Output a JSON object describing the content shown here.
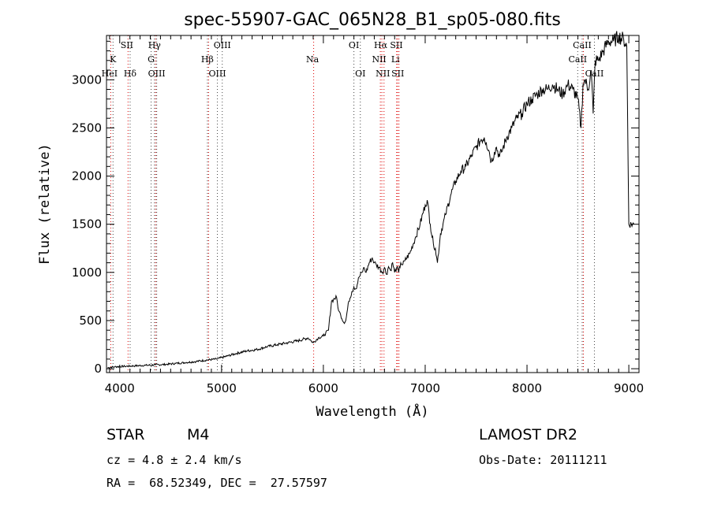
{
  "chart_data": {
    "type": "line",
    "title": "spec-55907-GAC_065N28_B1_sp05-080.fits",
    "xlabel": "Wavelength (Å)",
    "ylabel": "Flux (relative)",
    "xlim": [
      3870,
      9100
    ],
    "ylim": [
      -40,
      3460
    ],
    "xticks": [
      4000,
      5000,
      6000,
      7000,
      8000,
      9000
    ],
    "yticks": [
      0,
      500,
      1000,
      1500,
      2000,
      2500,
      3000
    ],
    "grid": false,
    "series": [
      {
        "x": [
          3880,
          3950,
          4050,
          4150,
          4250,
          4350,
          4450,
          4550,
          4650,
          4750,
          4850,
          4950,
          5050,
          5150,
          5250,
          5350,
          5450,
          5550,
          5650,
          5750,
          5850,
          5880,
          5900,
          5950,
          6000,
          6050,
          6080,
          6100,
          6130,
          6150,
          6170,
          6200,
          6220,
          6250,
          6280,
          6300,
          6320,
          6350,
          6380,
          6400,
          6420,
          6450,
          6480,
          6500,
          6520,
          6550,
          6580,
          6600,
          6620,
          6640,
          6660,
          6680,
          6700,
          6720,
          6740,
          6760,
          6780,
          6800,
          6850,
          6900,
          6950,
          7000,
          7020,
          7050,
          7080,
          7100,
          7120,
          7150,
          7200,
          7250,
          7300,
          7350,
          7400,
          7450,
          7500,
          7550,
          7580,
          7600,
          7630,
          7650,
          7680,
          7700,
          7730,
          7750,
          7800,
          7850,
          7900,
          7950,
          8000,
          8050,
          8100,
          8150,
          8200,
          8250,
          8300,
          8350,
          8400,
          8450,
          8500,
          8530,
          8550,
          8570,
          8600,
          8630,
          8650,
          8670,
          8700,
          8750,
          8800,
          8850,
          8900,
          8950,
          8980,
          9000,
          9050
        ],
        "y": [
          10,
          20,
          25,
          30,
          35,
          40,
          45,
          55,
          65,
          75,
          90,
          100,
          130,
          160,
          185,
          200,
          230,
          250,
          270,
          290,
          320,
          290,
          270,
          320,
          340,
          400,
          700,
          720,
          740,
          600,
          560,
          480,
          500,
          700,
          800,
          850,
          830,
          950,
          1000,
          1050,
          1000,
          1100,
          1150,
          1100,
          1080,
          1050,
          1000,
          1050,
          980,
          1060,
          1020,
          1100,
          1000,
          1050,
          1000,
          1100,
          1080,
          1120,
          1200,
          1350,
          1500,
          1700,
          1750,
          1500,
          1300,
          1250,
          1100,
          1400,
          1600,
          1800,
          1950,
          2050,
          2100,
          2200,
          2300,
          2380,
          2400,
          2350,
          2250,
          2150,
          2250,
          2300,
          2200,
          2250,
          2400,
          2500,
          2600,
          2650,
          2750,
          2800,
          2850,
          2900,
          2900,
          2950,
          2900,
          2850,
          2950,
          2900,
          2800,
          2500,
          2950,
          3000,
          2900,
          3100,
          2650,
          3200,
          3200,
          3300,
          3400,
          3400,
          3450,
          3420,
          3350,
          1500,
          1500
        ]
      }
    ],
    "line_labels": [
      {
        "x": 3934,
        "text": "K",
        "row": 2
      },
      {
        "x": 3900,
        "text": "HeI",
        "row": 3
      },
      {
        "x": 4070,
        "text": "SII",
        "row": 1
      },
      {
        "x": 4102,
        "text": "Hδ",
        "row": 3
      },
      {
        "x": 4341,
        "text": "Hγ",
        "row": 1
      },
      {
        "x": 4308,
        "text": "G",
        "row": 2
      },
      {
        "x": 4363,
        "text": "OIII",
        "row": 3
      },
      {
        "x": 5007,
        "text": "OIII",
        "row": 1
      },
      {
        "x": 4861,
        "text": "Hβ",
        "row": 2
      },
      {
        "x": 4959,
        "text": "OIII",
        "row": 3
      },
      {
        "x": 5893,
        "text": "Na",
        "row": 2
      },
      {
        "x": 6300,
        "text": "OI",
        "row": 1
      },
      {
        "x": 6363,
        "text": "OI",
        "row": 3
      },
      {
        "x": 6563,
        "text": "Hα",
        "row": 1
      },
      {
        "x": 6717,
        "text": "SII",
        "row": 1
      },
      {
        "x": 6548,
        "text": "NII",
        "row": 2
      },
      {
        "x": 6708,
        "text": "Li",
        "row": 2
      },
      {
        "x": 6584,
        "text": "NII",
        "row": 3
      },
      {
        "x": 6731,
        "text": "SII",
        "row": 3
      },
      {
        "x": 8542,
        "text": "CaII",
        "row": 1
      },
      {
        "x": 8498,
        "text": "CaII",
        "row": 2
      },
      {
        "x": 8662,
        "text": "CaII",
        "row": 3
      }
    ],
    "vlines_black": [
      3934,
      4102,
      4308,
      4341,
      4363,
      4861,
      4959,
      5007,
      6300,
      6363,
      8498,
      8542,
      8662
    ],
    "vlines_red": [
      3900,
      4070,
      4341,
      4861,
      5893,
      6548,
      6563,
      6584,
      6708,
      6717,
      6731,
      8542
    ]
  },
  "footer": {
    "class_label": "STAR",
    "subclass": "M4",
    "survey": "LAMOST DR2",
    "cz": "cz = 4.8 ± 2.4 km/s",
    "obs_date": "Obs-Date: 20111211",
    "coords": "RA =  68.52349, DEC =  27.57597"
  }
}
